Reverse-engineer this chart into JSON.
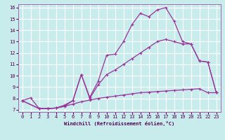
{
  "xlabel": "Windchill (Refroidissement éolien,°C)",
  "bg_color": "#c8ecec",
  "grid_color": "#ffffff",
  "line_color": "#993399",
  "xlim": [
    -0.5,
    23.5
  ],
  "ylim": [
    6.8,
    16.3
  ],
  "xticks": [
    0,
    1,
    2,
    3,
    4,
    5,
    6,
    7,
    8,
    9,
    10,
    11,
    12,
    13,
    14,
    15,
    16,
    17,
    18,
    19,
    20,
    21,
    22,
    23
  ],
  "yticks": [
    7,
    8,
    9,
    10,
    11,
    12,
    13,
    14,
    15,
    16
  ],
  "line1_x": [
    0,
    1,
    2,
    3,
    4,
    5,
    6,
    7,
    8,
    9,
    10,
    11,
    12,
    13,
    14,
    15,
    16,
    17,
    18,
    19,
    20,
    21,
    22,
    23
  ],
  "line1_y": [
    7.8,
    8.05,
    7.1,
    7.1,
    7.15,
    7.3,
    7.5,
    7.7,
    7.85,
    8.0,
    8.1,
    8.2,
    8.3,
    8.4,
    8.5,
    8.55,
    8.6,
    8.65,
    8.7,
    8.75,
    8.8,
    8.85,
    8.5,
    8.5
  ],
  "line2_x": [
    0,
    2,
    3,
    4,
    5,
    6,
    7,
    8,
    9,
    10,
    11,
    12,
    13,
    14,
    15,
    16,
    17,
    18,
    19,
    20,
    21,
    22,
    23
  ],
  "line2_y": [
    7.8,
    7.1,
    7.1,
    7.15,
    7.3,
    7.8,
    10.1,
    8.0,
    9.2,
    10.1,
    10.5,
    11.0,
    11.5,
    12.0,
    12.5,
    13.0,
    13.2,
    13.0,
    12.8,
    12.8,
    11.3,
    11.2,
    8.5
  ],
  "line3_x": [
    0,
    2,
    3,
    4,
    5,
    6,
    7,
    8,
    9,
    10,
    11,
    12,
    13,
    14,
    15,
    16,
    17,
    18,
    19,
    20,
    21,
    22,
    23
  ],
  "line3_y": [
    7.8,
    7.1,
    7.1,
    7.15,
    7.4,
    7.8,
    10.1,
    8.1,
    9.5,
    11.8,
    11.9,
    13.0,
    14.5,
    15.5,
    15.2,
    15.8,
    16.0,
    14.8,
    13.0,
    12.8,
    11.3,
    11.2,
    8.5
  ]
}
